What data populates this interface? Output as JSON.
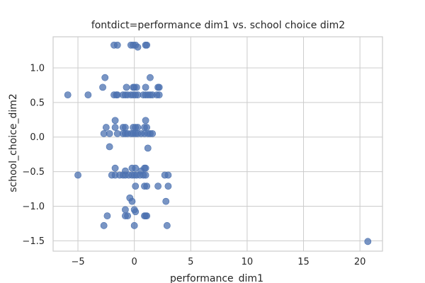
{
  "chart_data": {
    "type": "scatter",
    "title": "fontdict=performance dim1 vs. school choice dim2",
    "xlabel": "performance_dim1",
    "ylabel": "school_choice_dim2",
    "xlim": [
      -7.2,
      22.0
    ],
    "ylim": [
      -1.65,
      1.45
    ],
    "xticks": [
      -5,
      0,
      5,
      10,
      15,
      20
    ],
    "yticks": [
      -1.5,
      -1.0,
      -0.5,
      0.0,
      0.5,
      1.0
    ],
    "xtick_labels": [
      "−5",
      "0",
      "5",
      "10",
      "15",
      "20"
    ],
    "ytick_labels": [
      "−1.5",
      "−1.0",
      "−0.5",
      "0.0",
      "0.5",
      "1.0"
    ],
    "grid": true,
    "marker_color": "#4c72b0",
    "marker_opacity": 0.75,
    "points": [
      [
        -1.8,
        1.33
      ],
      [
        -1.5,
        1.33
      ],
      [
        -0.3,
        1.33
      ],
      [
        -0.1,
        1.33
      ],
      [
        0.1,
        1.33
      ],
      [
        0.3,
        1.3
      ],
      [
        1.0,
        1.33
      ],
      [
        1.1,
        1.33
      ],
      [
        -2.6,
        0.86
      ],
      [
        1.4,
        0.86
      ],
      [
        -2.8,
        0.72
      ],
      [
        -0.7,
        0.72
      ],
      [
        -0.1,
        0.72
      ],
      [
        0.0,
        0.72
      ],
      [
        0.2,
        0.72
      ],
      [
        1.0,
        0.72
      ],
      [
        2.1,
        0.72
      ],
      [
        2.2,
        0.72
      ],
      [
        -5.9,
        0.61
      ],
      [
        -4.1,
        0.61
      ],
      [
        -1.8,
        0.61
      ],
      [
        -1.6,
        0.61
      ],
      [
        -1.5,
        0.61
      ],
      [
        -1.0,
        0.61
      ],
      [
        -0.8,
        0.61
      ],
      [
        -0.6,
        0.61
      ],
      [
        -0.3,
        0.61
      ],
      [
        -0.1,
        0.61
      ],
      [
        0.1,
        0.61
      ],
      [
        0.3,
        0.61
      ],
      [
        0.8,
        0.61
      ],
      [
        1.0,
        0.61
      ],
      [
        1.2,
        0.61
      ],
      [
        1.4,
        0.61
      ],
      [
        1.6,
        0.61
      ],
      [
        2.0,
        0.61
      ],
      [
        2.2,
        0.61
      ],
      [
        -1.7,
        0.24
      ],
      [
        1.0,
        0.24
      ],
      [
        -2.5,
        0.14
      ],
      [
        -1.7,
        0.14
      ],
      [
        -1.0,
        0.14
      ],
      [
        -0.8,
        0.14
      ],
      [
        -0.1,
        0.14
      ],
      [
        0.1,
        0.14
      ],
      [
        0.3,
        0.14
      ],
      [
        0.9,
        0.14
      ],
      [
        1.1,
        0.14
      ],
      [
        -2.7,
        0.05
      ],
      [
        -2.2,
        0.05
      ],
      [
        -1.5,
        0.05
      ],
      [
        -1.0,
        0.05
      ],
      [
        -0.8,
        0.05
      ],
      [
        -0.6,
        0.05
      ],
      [
        -0.3,
        0.05
      ],
      [
        -0.1,
        0.05
      ],
      [
        0.1,
        0.05
      ],
      [
        0.3,
        0.05
      ],
      [
        0.6,
        0.05
      ],
      [
        0.9,
        0.05
      ],
      [
        1.2,
        0.05
      ],
      [
        1.4,
        0.05
      ],
      [
        1.6,
        0.05
      ],
      [
        -2.2,
        -0.14
      ],
      [
        1.2,
        -0.16
      ],
      [
        -1.7,
        -0.45
      ],
      [
        -0.2,
        -0.45
      ],
      [
        0.1,
        -0.45
      ],
      [
        0.9,
        -0.45
      ],
      [
        1.0,
        -0.45
      ],
      [
        -5.0,
        -0.55
      ],
      [
        -2.0,
        -0.55
      ],
      [
        -1.7,
        -0.55
      ],
      [
        -1.3,
        -0.55
      ],
      [
        -1.0,
        -0.55
      ],
      [
        -0.8,
        -0.55
      ],
      [
        -0.5,
        -0.55
      ],
      [
        -0.2,
        -0.55
      ],
      [
        0.0,
        -0.55
      ],
      [
        0.2,
        -0.55
      ],
      [
        0.5,
        -0.55
      ],
      [
        0.8,
        -0.55
      ],
      [
        1.0,
        -0.55
      ],
      [
        2.7,
        -0.55
      ],
      [
        3.0,
        -0.55
      ],
      [
        -0.8,
        -0.49
      ],
      [
        0.6,
        -0.49
      ],
      [
        0.1,
        -0.71
      ],
      [
        0.9,
        -0.71
      ],
      [
        1.1,
        -0.71
      ],
      [
        2.1,
        -0.71
      ],
      [
        3.0,
        -0.71
      ],
      [
        -0.4,
        -0.88
      ],
      [
        -0.2,
        -0.93
      ],
      [
        2.8,
        -0.93
      ],
      [
        -0.8,
        -1.05
      ],
      [
        0.0,
        -1.05
      ],
      [
        0.1,
        -1.08
      ],
      [
        -2.4,
        -1.14
      ],
      [
        -0.8,
        -1.14
      ],
      [
        -0.6,
        -1.14
      ],
      [
        0.9,
        -1.14
      ],
      [
        1.0,
        -1.14
      ],
      [
        1.1,
        -1.14
      ],
      [
        -2.7,
        -1.28
      ],
      [
        0.0,
        -1.28
      ],
      [
        2.9,
        -1.28
      ],
      [
        20.7,
        -1.51
      ]
    ]
  }
}
